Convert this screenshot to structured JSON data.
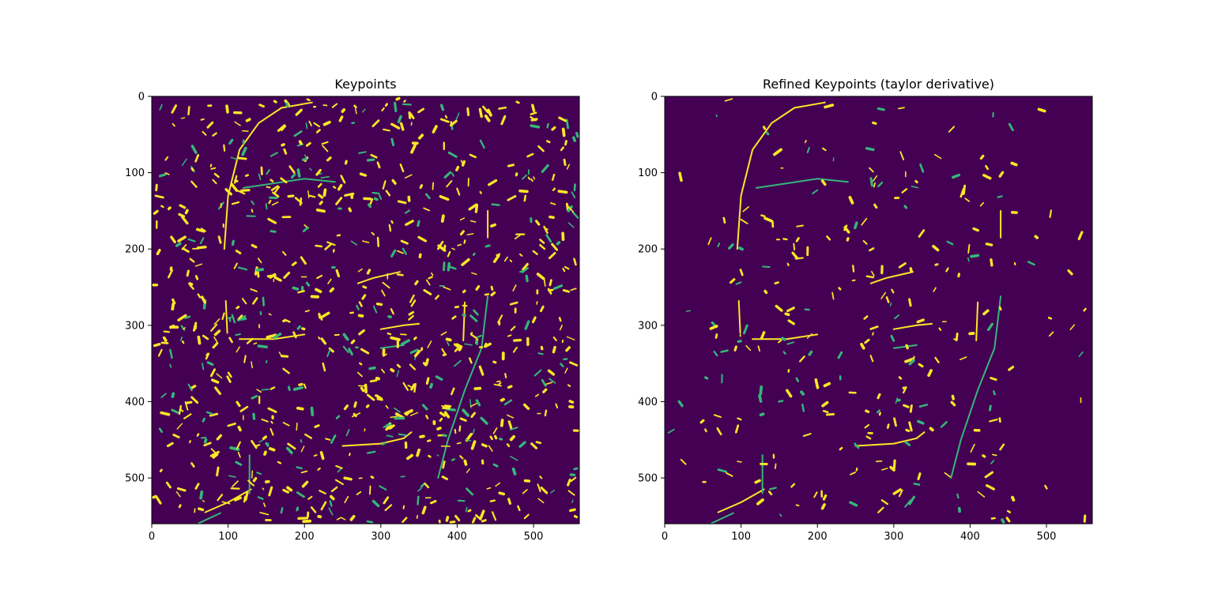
{
  "chart_data": [
    {
      "type": "heatmap",
      "title": "Keypoints",
      "colormap": "viridis",
      "background_color": "#440154",
      "colors": {
        "high": "#fde725",
        "mid": "#35b779"
      },
      "xlim": [
        0,
        560
      ],
      "ylim": [
        560,
        0
      ],
      "x_ticks": [
        0,
        100,
        200,
        300,
        400,
        500
      ],
      "y_ticks": [
        0,
        100,
        200,
        300,
        400,
        500
      ],
      "x_tick_labels": [
        "0",
        "100",
        "200",
        "300",
        "400",
        "500"
      ],
      "y_tick_labels": [
        "0",
        "100",
        "200",
        "300",
        "400",
        "500"
      ],
      "density": "high"
    },
    {
      "type": "heatmap",
      "title": "Refined Keypoints (taylor derivative)",
      "colormap": "viridis",
      "background_color": "#440154",
      "colors": {
        "high": "#fde725",
        "mid": "#35b779"
      },
      "xlim": [
        0,
        560
      ],
      "ylim": [
        560,
        0
      ],
      "x_ticks": [
        0,
        100,
        200,
        300,
        400,
        500
      ],
      "y_ticks": [
        0,
        100,
        200,
        300,
        400,
        500
      ],
      "x_tick_labels": [
        "0",
        "100",
        "200",
        "300",
        "400",
        "500"
      ],
      "y_tick_labels": [
        "0",
        "100",
        "200",
        "300",
        "400",
        "500"
      ],
      "density": "low"
    }
  ]
}
